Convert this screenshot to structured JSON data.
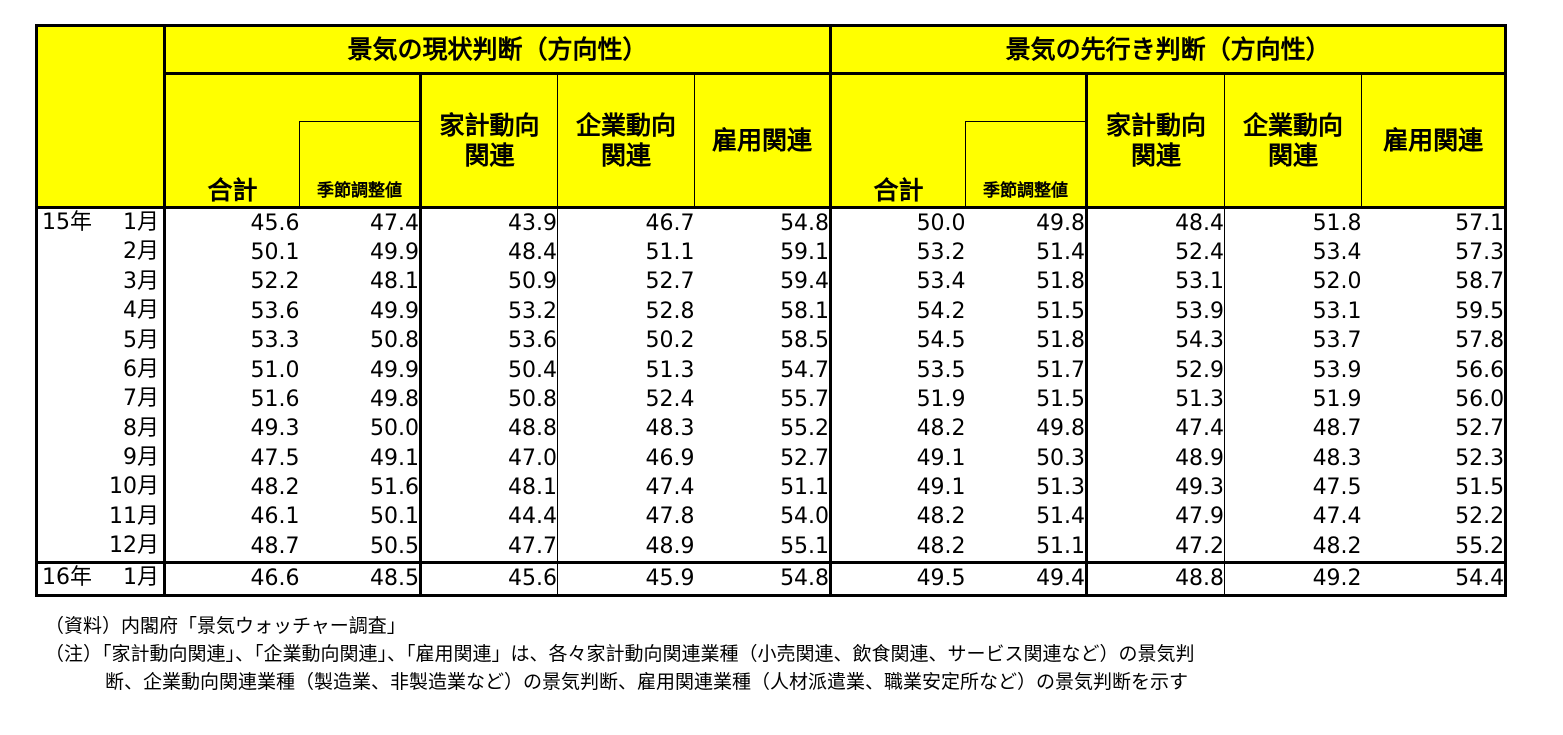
{
  "header": {
    "group_current": "景気の現状判断（方向性）",
    "group_future": "景気の先行き判断（方向性）",
    "col_total": "合計",
    "col_seasonal": "季節調整値",
    "col_household": "家計動向関連",
    "col_corporate": "企業動向関連",
    "col_employment": "雇用関連"
  },
  "rows": [
    {
      "year": "15年",
      "month": "1月",
      "values": [
        "45.6",
        "47.4",
        "43.9",
        "46.7",
        "54.8",
        "50.0",
        "49.8",
        "48.4",
        "51.8",
        "57.1"
      ]
    },
    {
      "year": "",
      "month": "2月",
      "values": [
        "50.1",
        "49.9",
        "48.4",
        "51.1",
        "59.1",
        "53.2",
        "51.4",
        "52.4",
        "53.4",
        "57.3"
      ]
    },
    {
      "year": "",
      "month": "3月",
      "values": [
        "52.2",
        "48.1",
        "50.9",
        "52.7",
        "59.4",
        "53.4",
        "51.8",
        "53.1",
        "52.0",
        "58.7"
      ]
    },
    {
      "year": "",
      "month": "4月",
      "values": [
        "53.6",
        "49.9",
        "53.2",
        "52.8",
        "58.1",
        "54.2",
        "51.5",
        "53.9",
        "53.1",
        "59.5"
      ]
    },
    {
      "year": "",
      "month": "5月",
      "values": [
        "53.3",
        "50.8",
        "53.6",
        "50.2",
        "58.5",
        "54.5",
        "51.8",
        "54.3",
        "53.7",
        "57.8"
      ]
    },
    {
      "year": "",
      "month": "6月",
      "values": [
        "51.0",
        "49.9",
        "50.4",
        "51.3",
        "54.7",
        "53.5",
        "51.7",
        "52.9",
        "53.9",
        "56.6"
      ]
    },
    {
      "year": "",
      "month": "7月",
      "values": [
        "51.6",
        "49.8",
        "50.8",
        "52.4",
        "55.7",
        "51.9",
        "51.5",
        "51.3",
        "51.9",
        "56.0"
      ]
    },
    {
      "year": "",
      "month": "8月",
      "values": [
        "49.3",
        "50.0",
        "48.8",
        "48.3",
        "55.2",
        "48.2",
        "49.8",
        "47.4",
        "48.7",
        "52.7"
      ]
    },
    {
      "year": "",
      "month": "9月",
      "values": [
        "47.5",
        "49.1",
        "47.0",
        "46.9",
        "52.7",
        "49.1",
        "50.3",
        "48.9",
        "48.3",
        "52.3"
      ]
    },
    {
      "year": "",
      "month": "10月",
      "values": [
        "48.2",
        "51.6",
        "48.1",
        "47.4",
        "51.1",
        "49.1",
        "51.3",
        "49.3",
        "47.5",
        "51.5"
      ]
    },
    {
      "year": "",
      "month": "11月",
      "values": [
        "46.1",
        "50.1",
        "44.4",
        "47.8",
        "54.0",
        "48.2",
        "51.4",
        "47.9",
        "47.4",
        "52.2"
      ]
    },
    {
      "year": "",
      "month": "12月",
      "values": [
        "48.7",
        "50.5",
        "47.7",
        "48.9",
        "55.1",
        "48.2",
        "51.1",
        "47.2",
        "48.2",
        "55.2"
      ]
    },
    {
      "year": "16年",
      "month": "1月",
      "values": [
        "46.6",
        "48.5",
        "45.6",
        "45.9",
        "54.8",
        "49.5",
        "49.4",
        "48.8",
        "49.2",
        "54.4"
      ]
    }
  ],
  "notes": {
    "source": "（資料）内閣府「景気ウォッチャー調査」",
    "note_line1": "（注）「家計動向関連」、「企業動向関連」、「雇用関連」は、各々家計動向関連業種（小売関連、飲食関連、サービス関連など）の景気判",
    "note_line2": "断、企業動向関連業種（製造業、非製造業など）の景気判断、雇用関連業種（人材派遣業、職業安定所など）の景気判断を示す"
  }
}
